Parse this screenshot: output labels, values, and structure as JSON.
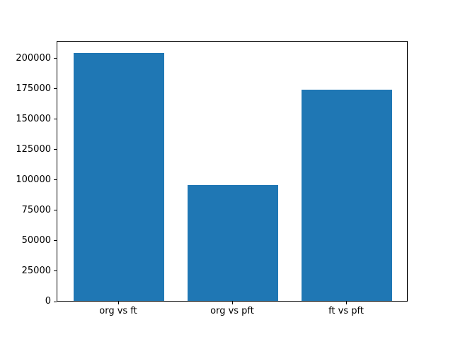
{
  "chart_data": {
    "type": "bar",
    "categories": [
      "org vs ft",
      "org vs pft",
      "ft vs pft"
    ],
    "values": [
      204000,
      95500,
      173500
    ],
    "title": "",
    "xlabel": "",
    "ylabel": "",
    "ylim": [
      0,
      214200
    ],
    "xlim": [
      -0.54,
      2.54
    ],
    "yticks": [
      0,
      25000,
      50000,
      75000,
      100000,
      125000,
      150000,
      175000,
      200000
    ],
    "bar_width_fraction": 0.8,
    "bar_color": "#1f77b4",
    "grid": false,
    "legend": "none",
    "background_color": "#ffffff",
    "spine_color": "#000000",
    "text_color": "#000000"
  }
}
